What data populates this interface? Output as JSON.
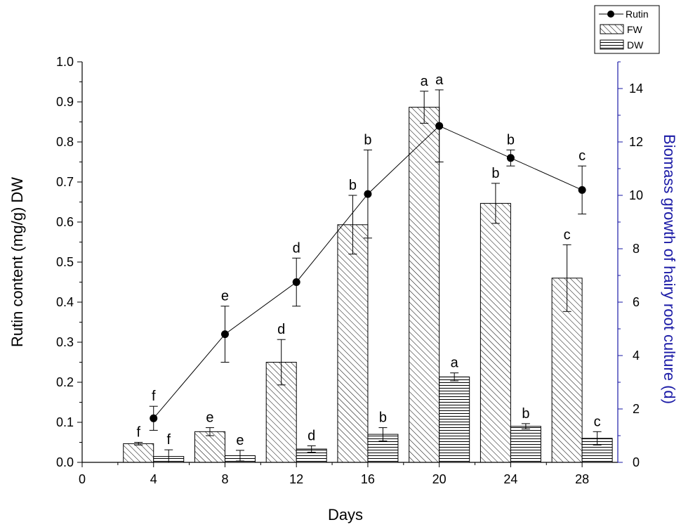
{
  "chart_data": {
    "type": "bar",
    "x_values": [
      4,
      8,
      12,
      16,
      20,
      24,
      28
    ],
    "xlabel": "Days",
    "xlim": [
      0,
      30
    ],
    "x_ticks": [
      "0",
      "4",
      "8",
      "12",
      "16",
      "20",
      "24",
      "28"
    ],
    "y_left": {
      "label": "Rutin content (mg/g) DW",
      "lim": [
        0,
        1.0
      ],
      "ticks": [
        "0.0",
        "0.1",
        "0.2",
        "0.3",
        "0.4",
        "0.5",
        "0.6",
        "0.7",
        "0.8",
        "0.9",
        "1.0"
      ]
    },
    "y_right": {
      "label": "Biomass growth of  hairy root culture (d)",
      "lim": [
        0,
        15
      ],
      "ticks": [
        "0",
        "2",
        "4",
        "6",
        "8",
        "10",
        "12",
        "14"
      ],
      "color": "#1a1aa6"
    },
    "series": [
      {
        "name": "Rutin",
        "kind": "line",
        "axis": "left",
        "values": [
          0.11,
          0.32,
          0.45,
          0.67,
          0.84,
          0.76,
          0.68
        ],
        "errors": [
          0.03,
          0.07,
          0.06,
          0.11,
          0.09,
          0.02,
          0.06
        ],
        "labels": [
          "f",
          "e",
          "d",
          "b",
          "a",
          "b",
          "c"
        ]
      },
      {
        "name": "FW",
        "kind": "bar",
        "pattern": "diagonal",
        "axis": "right",
        "values": [
          0.7,
          1.15,
          3.75,
          8.9,
          13.3,
          9.7,
          6.9
        ],
        "errors": [
          0.05,
          0.15,
          0.85,
          1.1,
          0.6,
          0.75,
          1.25
        ],
        "labels": [
          "f",
          "e",
          "d",
          "b",
          "a",
          "b",
          "c"
        ]
      },
      {
        "name": "DW",
        "kind": "bar",
        "pattern": "horizontal",
        "axis": "right",
        "values": [
          0.22,
          0.25,
          0.5,
          1.05,
          3.2,
          1.35,
          0.9
        ],
        "errors": [
          0.25,
          0.2,
          0.12,
          0.25,
          0.15,
          0.1,
          0.25
        ],
        "labels": [
          "f",
          "e",
          "d",
          "b",
          "a",
          "b",
          "c"
        ]
      }
    ],
    "legend": {
      "placement": "top-right",
      "entries": [
        "Rutin",
        "FW",
        "DW"
      ]
    }
  }
}
